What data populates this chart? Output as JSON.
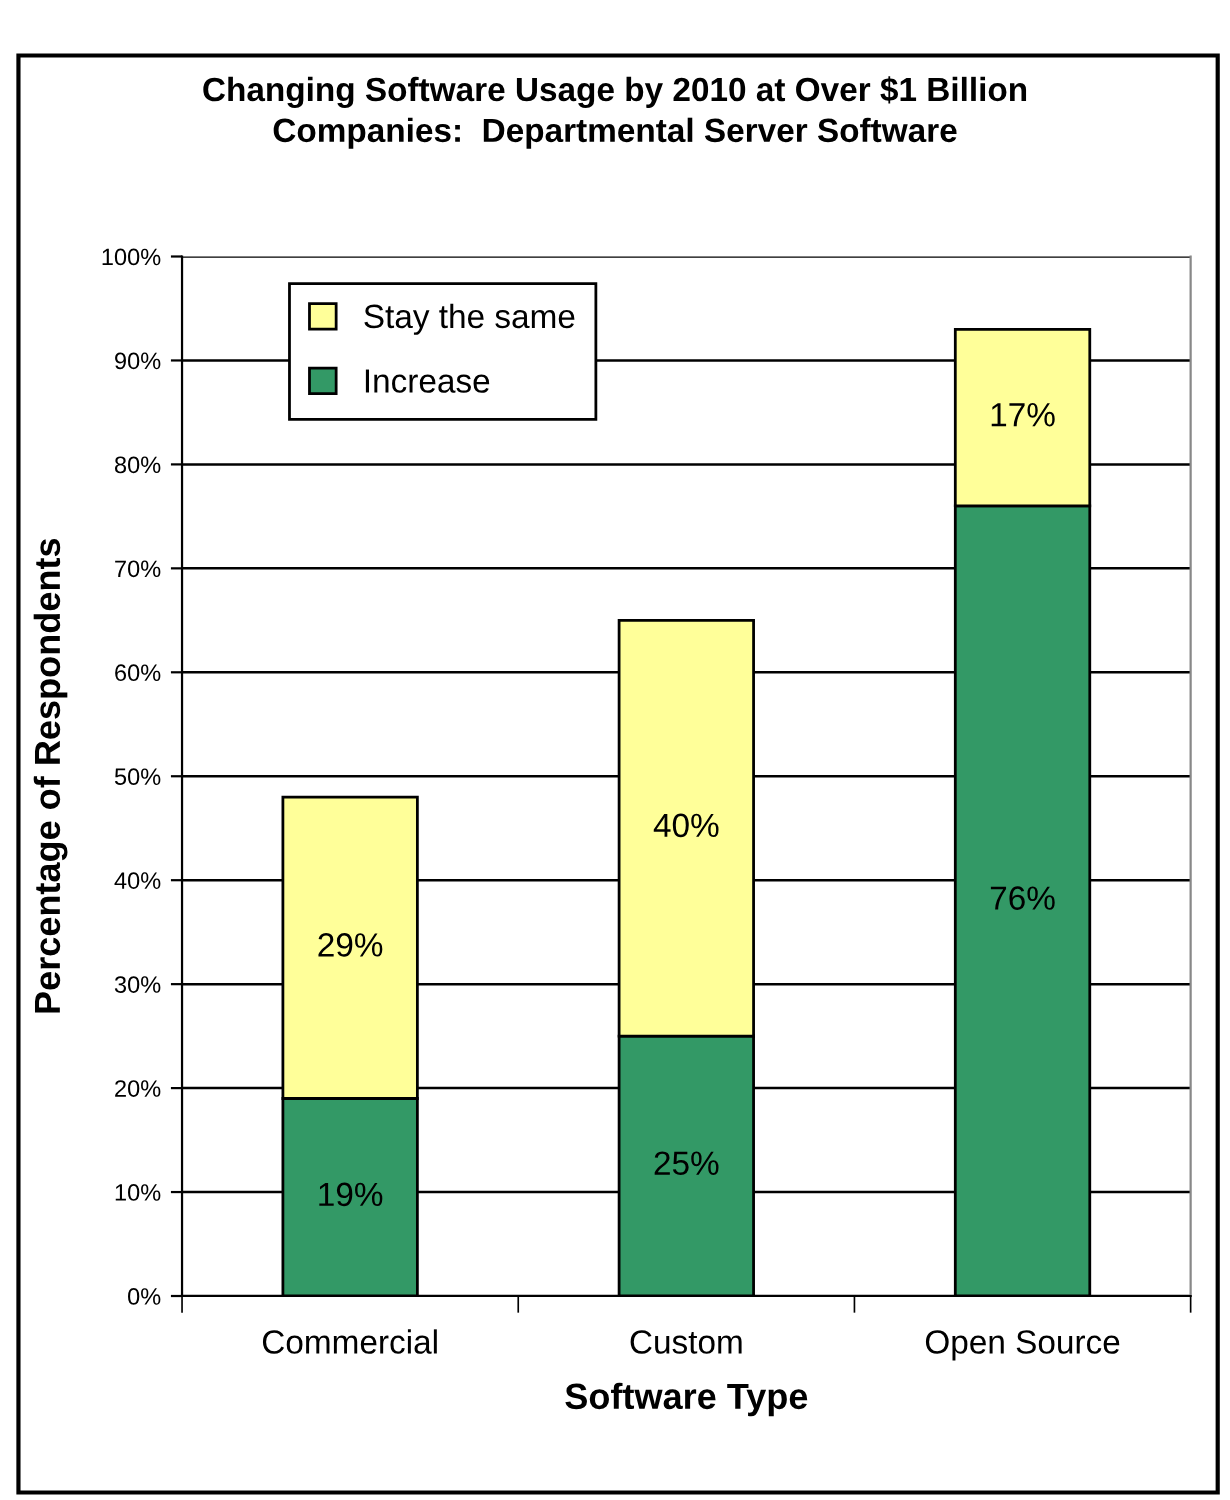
{
  "chart_data": {
    "type": "bar",
    "title": "Changing Software Usage by 2010 at Over $1 Billion\nCompanies:  Departmental Server Software",
    "xlabel": "Software Type",
    "ylabel": "Percentage of Respondents",
    "categories": [
      "Commercial",
      "Custom",
      "Open Source"
    ],
    "stacked": true,
    "series": [
      {
        "name": "Increase",
        "color": "#339966",
        "values": [
          19,
          25,
          76
        ],
        "value_labels": [
          "19%",
          "25%",
          "76%"
        ]
      },
      {
        "name": "Stay the same",
        "color": "#ffff99",
        "values": [
          29,
          40,
          17
        ],
        "value_labels": [
          "29%",
          "40%",
          "17%"
        ]
      }
    ],
    "ylim": [
      0,
      100
    ],
    "yticks": [
      {
        "value": 0,
        "label": "0%"
      },
      {
        "value": 10,
        "label": "10%"
      },
      {
        "value": 20,
        "label": "20%"
      },
      {
        "value": 30,
        "label": "30%"
      },
      {
        "value": 40,
        "label": "40%"
      },
      {
        "value": 50,
        "label": "50%"
      },
      {
        "value": 60,
        "label": "60%"
      },
      {
        "value": 70,
        "label": "70%"
      },
      {
        "value": 80,
        "label": "80%"
      },
      {
        "value": 90,
        "label": "90%"
      },
      {
        "value": 100,
        "label": "100%"
      }
    ],
    "grid": "y",
    "legend": "top left"
  }
}
